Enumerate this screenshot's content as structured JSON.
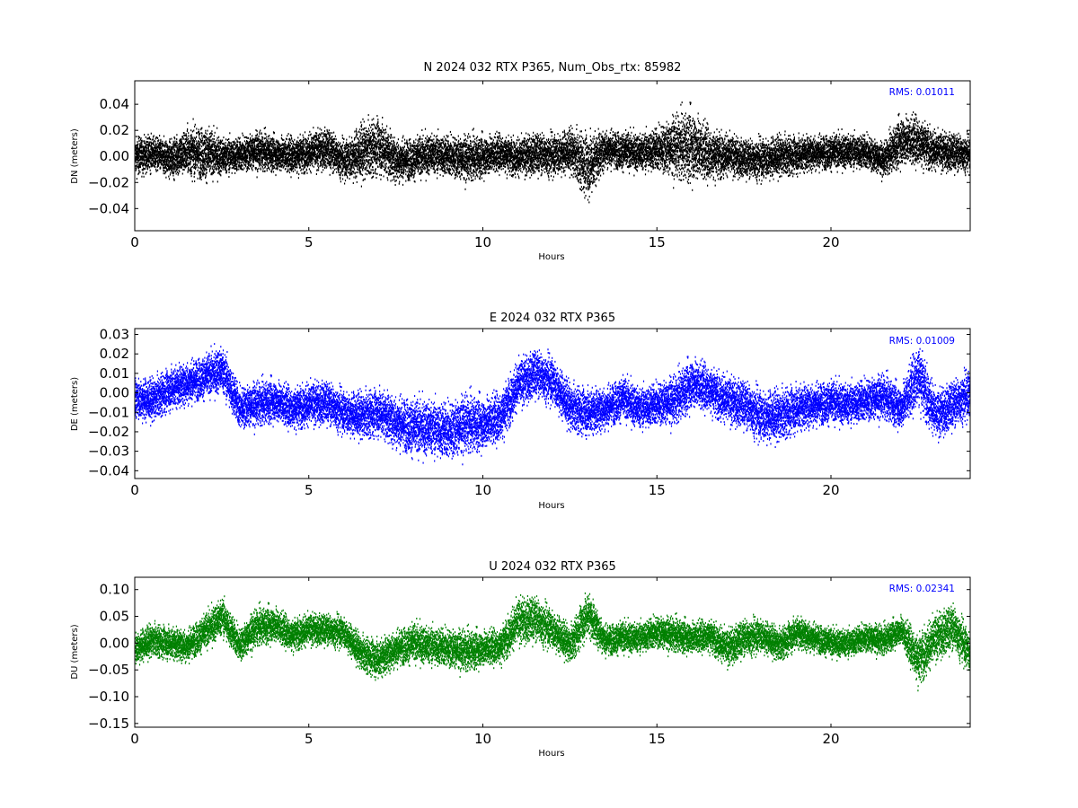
{
  "chart_data": [
    {
      "type": "scatter",
      "title": "N 2024 032 RTX  P365, Num_Obs_rtx: 85982",
      "xlabel": "Hours",
      "ylabel": "DN (meters)",
      "xlim": [
        0,
        24
      ],
      "ylim": [
        -0.057,
        0.058
      ],
      "xticks": [
        0,
        5,
        10,
        15,
        20
      ],
      "yticks": [
        -0.04,
        -0.02,
        0.0,
        0.02,
        0.04
      ],
      "ytick_labels": [
        "−0.04",
        "−0.02",
        "0.00",
        "0.02",
        "0.04"
      ],
      "xtick_labels": [
        "0",
        "5",
        "10",
        "15",
        "20"
      ],
      "annotation": "RMS:  0.01011",
      "color": "#000000",
      "series": [
        {
          "x": [
            0,
            0.5,
            1,
            1.5,
            2,
            2.5,
            3,
            3.5,
            4,
            4.5,
            5,
            5.5,
            6,
            6.5,
            7,
            7.5,
            8,
            8.5,
            9,
            9.5,
            10,
            10.5,
            11,
            11.5,
            12,
            12.5,
            13,
            13.5,
            14,
            14.5,
            15,
            15.5,
            16,
            16.5,
            17,
            17.5,
            18,
            18.5,
            19,
            19.5,
            20,
            20.5,
            21,
            21.5,
            22,
            22.5,
            23,
            23.5,
            24
          ],
          "center": [
            0.0,
            0.002,
            -0.002,
            0.004,
            0.002,
            0.0,
            0.001,
            0.004,
            0.002,
            0.001,
            0.003,
            0.006,
            -0.003,
            0.003,
            0.008,
            -0.003,
            -0.002,
            0.002,
            0.0,
            -0.002,
            0.0,
            0.003,
            -0.001,
            0.002,
            0.001,
            0.004,
            -0.008,
            0.006,
            0.004,
            0.003,
            0.005,
            0.007,
            0.008,
            0.002,
            0.001,
            -0.002,
            -0.002,
            0.0,
            0.001,
            0.003,
            0.003,
            0.004,
            0.003,
            -0.003,
            0.012,
            0.012,
            0.004,
            0.003,
            0.002
          ],
          "spread": [
            0.012,
            0.011,
            0.012,
            0.015,
            0.017,
            0.012,
            0.011,
            0.012,
            0.011,
            0.012,
            0.012,
            0.013,
            0.012,
            0.018,
            0.018,
            0.014,
            0.013,
            0.013,
            0.013,
            0.014,
            0.013,
            0.012,
            0.012,
            0.013,
            0.013,
            0.014,
            0.021,
            0.012,
            0.012,
            0.012,
            0.014,
            0.019,
            0.023,
            0.017,
            0.013,
            0.012,
            0.013,
            0.013,
            0.012,
            0.011,
            0.011,
            0.011,
            0.011,
            0.01,
            0.016,
            0.016,
            0.012,
            0.012,
            0.011
          ]
        }
      ]
    },
    {
      "type": "scatter",
      "title": "E 2024 032 RTX  P365",
      "xlabel": "Hours",
      "ylabel": "DE (meters)",
      "xlim": [
        0,
        24
      ],
      "ylim": [
        -0.044,
        0.033
      ],
      "xticks": [
        0,
        5,
        10,
        15,
        20
      ],
      "yticks": [
        -0.04,
        -0.03,
        -0.02,
        -0.01,
        0.0,
        0.01,
        0.02,
        0.03
      ],
      "ytick_labels": [
        "−0.04",
        "−0.03",
        "−0.02",
        "−0.01",
        "0.00",
        "0.01",
        "0.02",
        "0.03"
      ],
      "xtick_labels": [
        "0",
        "5",
        "10",
        "15",
        "20"
      ],
      "annotation": "RMS:  0.01009",
      "color": "#0000ff",
      "series": [
        {
          "x": [
            0,
            0.5,
            1,
            1.5,
            2,
            2.5,
            3,
            3.5,
            4,
            4.5,
            5,
            5.5,
            6,
            6.5,
            7,
            7.5,
            8,
            8.5,
            9,
            9.5,
            10,
            10.5,
            11,
            11.5,
            12,
            12.5,
            13,
            13.5,
            14,
            14.5,
            15,
            15.5,
            16,
            16.5,
            17,
            17.5,
            18,
            18.5,
            19,
            19.5,
            20,
            20.5,
            21,
            21.5,
            22,
            22.5,
            23,
            23.5,
            24
          ],
          "center": [
            -0.003,
            -0.004,
            0.002,
            0.005,
            0.008,
            0.012,
            -0.008,
            -0.006,
            -0.004,
            -0.008,
            -0.006,
            -0.005,
            -0.01,
            -0.012,
            -0.01,
            -0.015,
            -0.018,
            -0.018,
            -0.02,
            -0.016,
            -0.016,
            -0.012,
            0.004,
            0.01,
            0.006,
            -0.008,
            -0.01,
            -0.008,
            -0.003,
            -0.008,
            -0.006,
            -0.004,
            0.005,
            0.002,
            -0.004,
            -0.006,
            -0.012,
            -0.012,
            -0.008,
            -0.006,
            -0.005,
            -0.006,
            -0.004,
            -0.002,
            -0.008,
            0.01,
            -0.012,
            -0.006,
            0.0
          ],
          "spread": [
            0.009,
            0.009,
            0.009,
            0.009,
            0.009,
            0.01,
            0.009,
            0.009,
            0.009,
            0.009,
            0.009,
            0.009,
            0.009,
            0.01,
            0.01,
            0.011,
            0.012,
            0.012,
            0.012,
            0.012,
            0.011,
            0.011,
            0.01,
            0.01,
            0.01,
            0.01,
            0.01,
            0.009,
            0.009,
            0.009,
            0.009,
            0.01,
            0.011,
            0.01,
            0.01,
            0.01,
            0.011,
            0.011,
            0.01,
            0.009,
            0.009,
            0.009,
            0.009,
            0.009,
            0.009,
            0.014,
            0.01,
            0.01,
            0.01
          ]
        }
      ]
    },
    {
      "type": "scatter",
      "title": "U 2024 032 RTX  P365",
      "xlabel": "Hours",
      "ylabel": "DU (meters)",
      "xlim": [
        0,
        24
      ],
      "ylim": [
        -0.157,
        0.123
      ],
      "xticks": [
        0,
        5,
        10,
        15,
        20
      ],
      "yticks": [
        -0.15,
        -0.1,
        -0.05,
        0.0,
        0.05,
        0.1
      ],
      "ytick_labels": [
        "−0.15",
        "−0.10",
        "−0.05",
        "0.00",
        "0.05",
        "0.10"
      ],
      "xtick_labels": [
        "0",
        "5",
        "10",
        "15",
        "20"
      ],
      "annotation": "RMS:  0.02341",
      "color": "#008000",
      "series": [
        {
          "x": [
            0,
            0.5,
            1,
            1.5,
            2,
            2.5,
            3,
            3.5,
            4,
            4.5,
            5,
            5.5,
            6,
            6.5,
            7,
            7.5,
            8,
            8.5,
            9,
            9.5,
            10,
            10.5,
            11,
            11.5,
            12,
            12.5,
            13,
            13.5,
            14,
            14.5,
            15,
            15.5,
            16,
            16.5,
            17,
            17.5,
            18,
            18.5,
            19,
            19.5,
            20,
            20.5,
            21,
            21.5,
            22,
            22.5,
            23,
            23.5,
            24
          ],
          "center": [
            -0.01,
            0.005,
            0.0,
            -0.005,
            0.02,
            0.05,
            -0.005,
            0.03,
            0.035,
            0.015,
            0.025,
            0.025,
            0.02,
            -0.02,
            -0.03,
            -0.01,
            0.0,
            -0.005,
            -0.01,
            -0.015,
            -0.01,
            -0.005,
            0.04,
            0.045,
            0.025,
            -0.005,
            0.055,
            0.005,
            0.01,
            0.01,
            0.02,
            0.015,
            0.01,
            0.015,
            -0.01,
            0.01,
            0.015,
            -0.005,
            0.02,
            0.01,
            0.0,
            0.0,
            0.01,
            0.005,
            0.025,
            -0.03,
            0.01,
            0.03,
            -0.02
          ],
          "spread": [
            0.025,
            0.025,
            0.025,
            0.025,
            0.027,
            0.03,
            0.025,
            0.028,
            0.028,
            0.025,
            0.024,
            0.024,
            0.024,
            0.027,
            0.03,
            0.028,
            0.03,
            0.03,
            0.03,
            0.03,
            0.028,
            0.028,
            0.035,
            0.035,
            0.03,
            0.028,
            0.035,
            0.024,
            0.024,
            0.024,
            0.025,
            0.025,
            0.025,
            0.025,
            0.028,
            0.028,
            0.026,
            0.025,
            0.025,
            0.023,
            0.022,
            0.022,
            0.022,
            0.022,
            0.022,
            0.04,
            0.035,
            0.035,
            0.03
          ]
        }
      ]
    }
  ]
}
